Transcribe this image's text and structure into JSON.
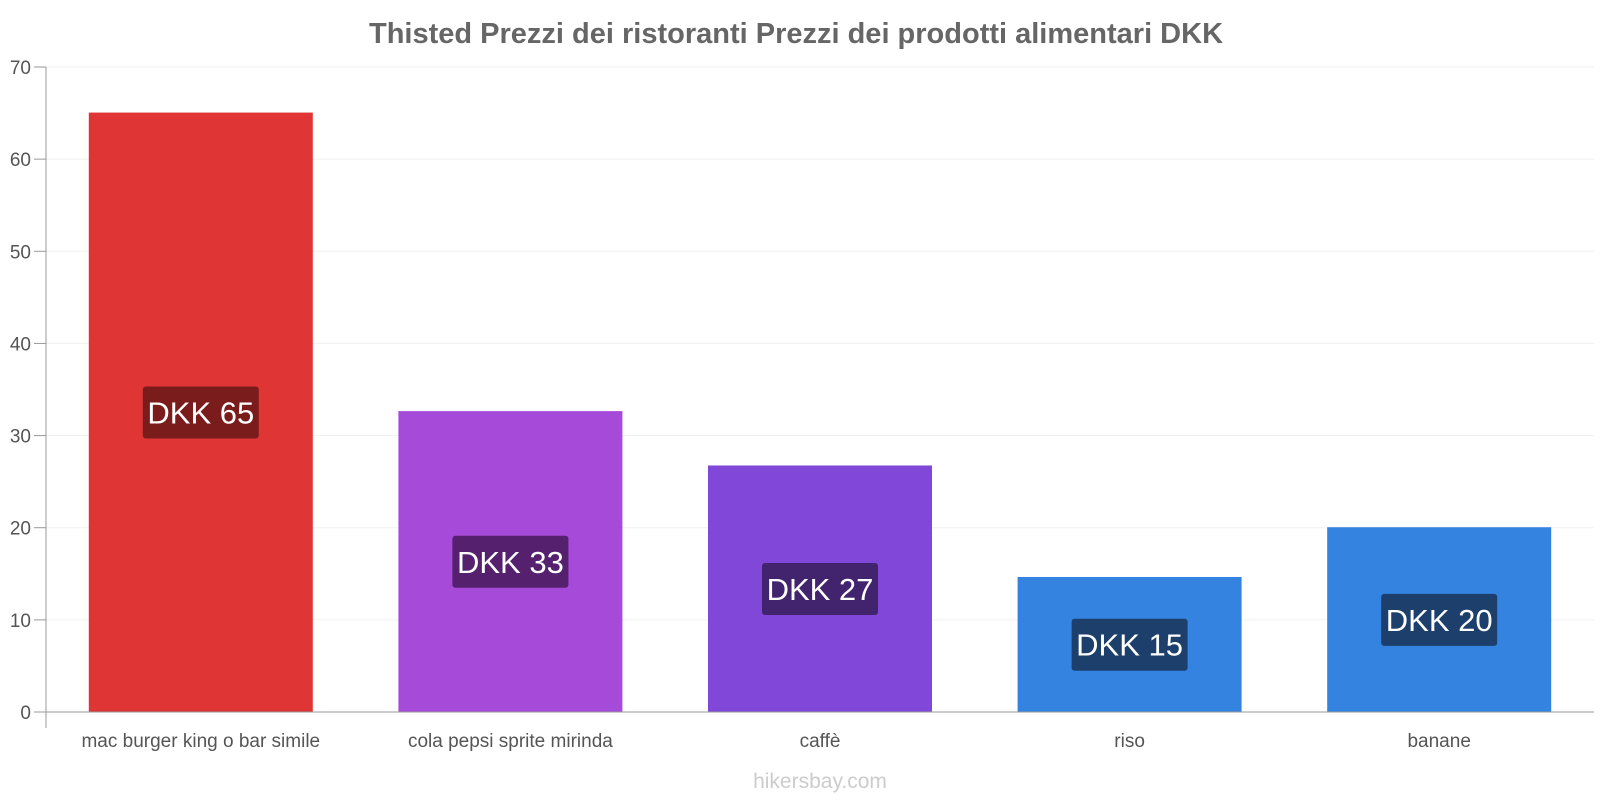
{
  "chart_data": {
    "type": "bar",
    "title": "Thisted Prezzi dei ristoranti Prezzi dei prodotti alimentari DKK",
    "xlabel": "",
    "ylabel": "",
    "ylim": [
      0,
      70
    ],
    "yticks": [
      0,
      10,
      20,
      30,
      40,
      50,
      60,
      70
    ],
    "grid": true,
    "categories": [
      "mac burger king o bar simile",
      "cola pepsi sprite mirinda",
      "caffè",
      "riso",
      "banane"
    ],
    "values": [
      65,
      32.6,
      26.7,
      14.6,
      20
    ],
    "data_labels": [
      "DKK 65",
      "DKK 33",
      "DKK 27",
      "DKK 15",
      "DKK 20"
    ],
    "bar_colors": [
      "#e03535",
      "#a64ad9",
      "#8047d9",
      "#3483e0",
      "#3483e0"
    ],
    "label_bg_colors": [
      "#7a1c1c",
      "#55206e",
      "#42236e",
      "#1c3f6b",
      "#1c3f6b"
    ]
  },
  "watermark": "hikersbay.com"
}
